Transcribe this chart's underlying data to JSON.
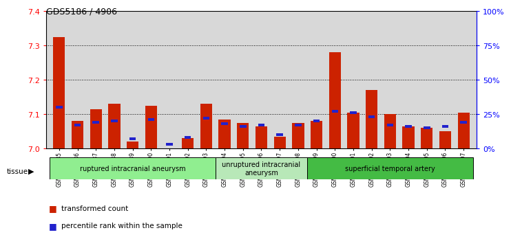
{
  "title": "GDS5186 / 4906",
  "samples": [
    "GSM1306885",
    "GSM1306886",
    "GSM1306887",
    "GSM1306888",
    "GSM1306889",
    "GSM1306890",
    "GSM1306891",
    "GSM1306892",
    "GSM1306893",
    "GSM1306894",
    "GSM1306895",
    "GSM1306896",
    "GSM1306897",
    "GSM1306898",
    "GSM1306899",
    "GSM1306900",
    "GSM1306901",
    "GSM1306902",
    "GSM1306903",
    "GSM1306904",
    "GSM1306905",
    "GSM1306906",
    "GSM1306907"
  ],
  "red_values": [
    7.325,
    7.08,
    7.115,
    7.13,
    7.02,
    7.125,
    7.0,
    7.03,
    7.13,
    7.085,
    7.075,
    7.065,
    7.035,
    7.075,
    7.08,
    7.28,
    7.105,
    7.17,
    7.1,
    7.065,
    7.06,
    7.05,
    7.105
  ],
  "blue_percentile": [
    30,
    17,
    19,
    20,
    7,
    21,
    3,
    8,
    22,
    18,
    16,
    17,
    10,
    17,
    20,
    27,
    26,
    23,
    17,
    16,
    15,
    16,
    19
  ],
  "y_min": 7.0,
  "y_max": 7.4,
  "left_yticks": [
    7.0,
    7.1,
    7.2,
    7.3,
    7.4
  ],
  "right_yticks": [
    0,
    25,
    50,
    75,
    100
  ],
  "tissue_groups": [
    {
      "label": "ruptured intracranial aneurysm",
      "start": 0,
      "end": 9,
      "color": "#90EE90"
    },
    {
      "label": "unruptured intracranial\naneurysm",
      "start": 9,
      "end": 14,
      "color": "#b8e8b8"
    },
    {
      "label": "superficial temporal artery",
      "start": 14,
      "end": 23,
      "color": "#44bb44"
    }
  ],
  "bar_width": 0.65,
  "red_color": "#cc2200",
  "blue_color": "#2222cc",
  "bg_color": "#d8d8d8",
  "tissue_label": "tissue",
  "legend_red": "transformed count",
  "legend_blue": "percentile rank within the sample"
}
